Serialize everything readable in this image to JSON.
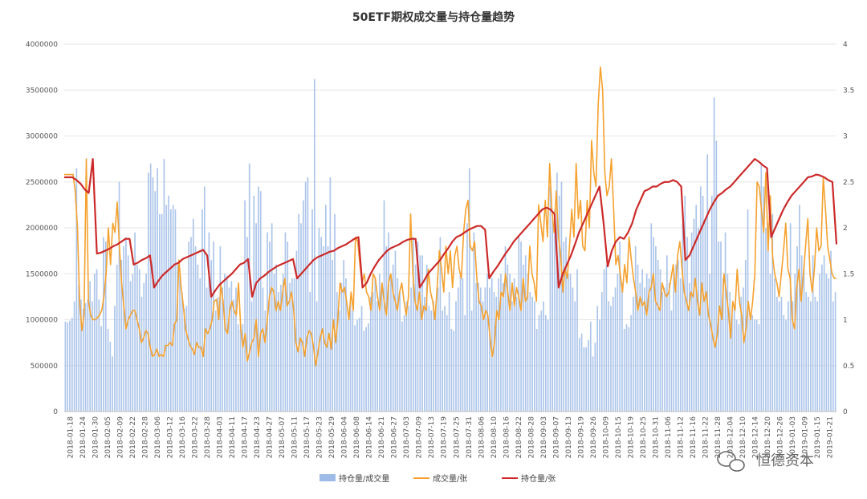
{
  "chart_data": {
    "type": "bar+line",
    "title": "50ETF期权成交量与持仓量趋势",
    "left_axis": {
      "min": 0,
      "max": 4000000,
      "step": 500000,
      "ticks": [
        "0",
        "500000",
        "1000000",
        "1500000",
        "2000000",
        "2500000",
        "3000000",
        "3500000",
        "4000000"
      ]
    },
    "right_axis": {
      "min": 0,
      "max": 4,
      "step": 0.5,
      "ticks": [
        "0",
        "0.5",
        "1",
        "1.5",
        "2",
        "2.5",
        "3",
        "3.5",
        "4"
      ]
    },
    "x_ticks": [
      "2018-01-18",
      "2018-01-24",
      "2018-01-30",
      "2018-02-05",
      "2018-02-09",
      "2018-02-22",
      "2018-02-28",
      "2018-03-06",
      "2018-03-12",
      "2018-03-16",
      "2018-03-22",
      "2018-03-28",
      "2018-04-03",
      "2018-04-11",
      "2018-04-17",
      "2018-04-23",
      "2018-04-27",
      "2018-05-07",
      "2018-05-11",
      "2018-05-17",
      "2018-05-23",
      "2018-05-29",
      "2018-06-04",
      "2018-06-08",
      "2018-06-14",
      "2018-06-21",
      "2018-06-27",
      "2018-07-03",
      "2018-07-09",
      "2018-07-13",
      "2018-07-19",
      "2018-07-25",
      "2018-07-31",
      "2018-08-06",
      "2018-08-10",
      "2018-08-16",
      "2018-08-22",
      "2018-08-28",
      "2018-09-03",
      "2018-09-07",
      "2018-09-13",
      "2018-09-19",
      "2018-09-26",
      "2018-10-09",
      "2018-10-15",
      "2018-10-19",
      "2018-10-25",
      "2018-10-31",
      "2018-11-06",
      "2018-11-12",
      "2018-11-16",
      "2018-11-22",
      "2018-11-28",
      "2018-12-04",
      "2018-12-10",
      "2018-12-14",
      "2018-12-20",
      "2018-12-26",
      "2019-01-03",
      "2019-01-09",
      "2019-01-15",
      "2019-01-21"
    ],
    "series": [
      {
        "name": "持仓量/成交量",
        "type": "bar",
        "axis": "left",
        "color": "#9dbbe6",
        "values": [
          980000,
          970000,
          990000,
          1020000,
          1200000,
          2650000,
          1380000,
          1220000,
          1120000,
          1180000,
          1220000,
          1420000,
          1200000,
          1500000,
          1550000,
          1220000,
          930000,
          1900000,
          1850000,
          900000,
          760000,
          600000,
          1150000,
          1600000,
          2500000,
          1650000,
          1800000,
          1900000,
          1700000,
          1420000,
          1500000,
          1950000,
          1600000,
          1550000,
          1250000,
          1400000,
          1500000,
          2600000,
          2700000,
          2550000,
          2400000,
          2650000,
          2150000,
          2150000,
          2750000,
          2250000,
          2350000,
          2200000,
          2250000,
          2200000,
          1600000,
          1500000,
          1300000,
          1120000,
          1150000,
          1850000,
          1900000,
          2100000,
          1800000,
          1600000,
          1450000,
          2200000,
          2450000,
          1350000,
          1950000,
          1650000,
          1850000,
          1100000,
          1250000,
          1800000,
          1350000,
          1500000,
          1480000,
          1350000,
          1420000,
          1220000,
          1350000,
          950000,
          900000,
          950000,
          2300000,
          1900000,
          2700000,
          1200000,
          2350000,
          2050000,
          2450000,
          2400000,
          1350000,
          1100000,
          1950000,
          1850000,
          2050000,
          1500000,
          1600000,
          1300000,
          1380000,
          1500000,
          1950000,
          1850000,
          1400000,
          1450000,
          1450000,
          1750000,
          2150000,
          2050000,
          2300000,
          2500000,
          2550000,
          1300000,
          2200000,
          3620000,
          1200000,
          2000000,
          1900000,
          1800000,
          2250000,
          1800000,
          2550000,
          1650000,
          2150000,
          1300000,
          1100000,
          1400000,
          1650000,
          1450000,
          1000000,
          1200000,
          1100000,
          940000,
          1000000,
          1020000,
          1150000,
          880000,
          920000,
          960000,
          1250000,
          1300000,
          1450000,
          1200000,
          1500000,
          1350000,
          2300000,
          1800000,
          1950000,
          1500000,
          1600000,
          1750000,
          1450000,
          1300000,
          980000,
          1050000,
          1200000,
          1150000,
          1350000,
          1900000,
          1600000,
          1850000,
          1700000,
          1700000,
          1250000,
          1600000,
          1150000,
          1100000,
          1200000,
          1150000,
          1350000,
          1900000,
          1100000,
          1150000,
          1050000,
          1300000,
          900000,
          880000,
          1200000,
          1350000,
          1500000,
          1450000,
          1050000,
          2050000,
          2650000,
          1100000,
          1950000,
          1400000,
          1400000,
          1350000,
          1200000,
          1350000,
          1500000,
          1350000,
          1450000,
          1300000,
          1250000,
          1450000,
          1500000,
          1400000,
          1800000,
          1600000,
          1500000,
          1200000,
          1450000,
          1250000,
          1900000,
          1850000,
          1600000,
          1700000,
          1500000,
          1300000,
          1250000,
          1200000,
          900000,
          1050000,
          1100000,
          1200000,
          1050000,
          1000000,
          2450000,
          2100000,
          2200000,
          2600000,
          2350000,
          2500000,
          1850000,
          1900000,
          1500000,
          1500000,
          1350000,
          1200000,
          1550000,
          800000,
          850000,
          700000,
          700000,
          780000,
          980000,
          600000,
          750000,
          1150000,
          1000000,
          1300000,
          1550000,
          1600000,
          1200000,
          1150000,
          1250000,
          1350000,
          1500000,
          1850000,
          1400000,
          900000,
          950000,
          920000,
          1050000,
          1250000,
          1800000,
          1600000,
          1400000,
          1550000,
          1350000,
          1500000,
          1450000,
          2050000,
          1900000,
          1800000,
          1650000,
          1550000,
          1300000,
          1350000,
          1700000,
          1400000,
          1100000,
          1500000,
          1600000,
          1650000,
          1450000,
          2050000,
          2350000,
          1900000,
          1400000,
          1950000,
          2100000,
          2250000,
          2000000,
          2450000,
          2350000,
          2100000,
          2800000,
          1500000,
          2350000,
          3420000,
          2950000,
          1850000,
          1850000,
          1450000,
          1950000,
          1500000,
          1300000,
          1050000,
          1150000,
          1000000,
          950000,
          1250000,
          1350000,
          1650000,
          2200000,
          1000000,
          1050000,
          1000000,
          1000000,
          950000,
          2700000,
          2450000,
          2000000,
          2050000,
          1500000,
          2150000,
          1450000,
          1250000,
          1200000,
          1250000,
          1050000,
          1000000,
          1200000,
          2050000,
          1200000,
          1500000,
          1800000,
          2250000,
          1700000,
          1600000,
          1300000,
          1250000,
          1200000,
          1700000,
          1250000,
          1200000,
          1500000,
          1600000,
          1700000,
          1500000,
          1450000,
          1750000,
          1200000,
          1300000
        ]
      },
      {
        "name": "成交量/张",
        "type": "line",
        "axis": "right",
        "color": "#f5a12e",
        "values": [
          2.58,
          2.58,
          2.58,
          2.58,
          2.58,
          2.4,
          2.0,
          1.2,
          0.88,
          1.05,
          2.75,
          1.2,
          1.05,
          1.0,
          1.0,
          1.02,
          1.05,
          1.1,
          1.25,
          1.5,
          2.0,
          1.6,
          2.05,
          1.95,
          2.28,
          1.8,
          1.4,
          1.15,
          0.9,
          1.0,
          1.05,
          1.1,
          1.1,
          1.0,
          0.9,
          0.75,
          0.8,
          0.88,
          0.85,
          0.7,
          0.6,
          0.62,
          0.68,
          0.6,
          0.62,
          0.6,
          0.72,
          0.72,
          0.75,
          0.72,
          0.95,
          1.0,
          1.65,
          1.35,
          1.15,
          0.9,
          0.8,
          0.72,
          0.68,
          0.62,
          0.75,
          0.7,
          0.7,
          0.6,
          0.9,
          0.85,
          0.9,
          1.0,
          1.2,
          1.22,
          1.0,
          1.38,
          1.2,
          0.9,
          0.85,
          1.1,
          1.2,
          1.1,
          1.05,
          1.4,
          0.9,
          0.7,
          0.85,
          0.55,
          0.65,
          0.75,
          0.8,
          1.0,
          0.6,
          0.85,
          0.9,
          0.75,
          1.0,
          1.25,
          1.35,
          1.3,
          1.1,
          1.2,
          1.1,
          1.3,
          1.45,
          1.15,
          1.2,
          1.3,
          1.1,
          0.75,
          0.65,
          0.8,
          0.75,
          0.6,
          0.8,
          0.88,
          0.85,
          0.7,
          0.5,
          0.65,
          0.8,
          0.9,
          0.75,
          0.7,
          0.85,
          0.68,
          1.0,
          0.75,
          1.0,
          1.4,
          1.3,
          1.35,
          1.2,
          1.0,
          1.3,
          1.1,
          1.9,
          1.85,
          1.6,
          1.4,
          1.5,
          1.3,
          1.25,
          1.1,
          1.5,
          1.45,
          1.25,
          1.1,
          1.4,
          1.2,
          1.05,
          1.4,
          1.5,
          1.3,
          1.2,
          1.1,
          1.3,
          1.4,
          1.2,
          1.05,
          1.25,
          2.15,
          1.5,
          1.2,
          1.1,
          1.3,
          1.0,
          1.15,
          1.1,
          1.55,
          1.3,
          1.2,
          1.0,
          1.35,
          1.75,
          1.55,
          1.3,
          1.8,
          1.5,
          1.75,
          1.35,
          1.7,
          1.8,
          1.55,
          1.45,
          1.95,
          2.2,
          2.3,
          1.8,
          1.75,
          1.85,
          1.45,
          1.2,
          1.15,
          1.0,
          1.1,
          1.05,
          0.8,
          0.6,
          0.75,
          1.1,
          1.0,
          1.3,
          1.25,
          1.5,
          1.3,
          1.1,
          1.4,
          1.15,
          1.35,
          1.25,
          1.1,
          1.45,
          1.2,
          1.25,
          1.8,
          1.5,
          1.4,
          1.2,
          2.25,
          2.05,
          1.85,
          2.3,
          1.9,
          2.7,
          2.2,
          1.95,
          2.4,
          1.9,
          1.7,
          1.3,
          1.55,
          1.45,
          1.8,
          2.2,
          1.9,
          2.7,
          2.1,
          2.3,
          1.8,
          1.75,
          2.3,
          2.0,
          2.95,
          2.6,
          2.45,
          3.35,
          3.75,
          3.5,
          2.6,
          2.35,
          2.45,
          2.75,
          2.2,
          1.6,
          1.7,
          1.5,
          1.3,
          1.6,
          1.4,
          1.9,
          1.65,
          1.45,
          1.3,
          1.1,
          1.25,
          1.15,
          1.2,
          1.05,
          1.3,
          1.35,
          1.5,
          1.2,
          1.15,
          1.1,
          1.4,
          1.3,
          1.25,
          1.3,
          1.45,
          1.6,
          1.3,
          1.7,
          1.85,
          1.55,
          1.3,
          1.2,
          1.1,
          1.3,
          1.25,
          1.45,
          1.2,
          1.05,
          1.4,
          1.2,
          1.3,
          1.05,
          0.95,
          0.8,
          0.7,
          0.85,
          1.15,
          1.0,
          1.5,
          1.3,
          1.1,
          0.8,
          1.2,
          1.1,
          1.55,
          1.2,
          1.05,
          0.75,
          0.9,
          1.2,
          1.0,
          1.2,
          1.5,
          2.5,
          2.45,
          2.2,
          1.95,
          2.6,
          1.75,
          2.35,
          1.7,
          1.5,
          1.4,
          1.25,
          1.5,
          1.75,
          2.05,
          1.55,
          1.45,
          1.0,
          0.9,
          1.35,
          1.55,
          1.2,
          1.5,
          1.8,
          2.1,
          1.5,
          1.3,
          1.55,
          2.0,
          1.75,
          1.8,
          2.55,
          2.2,
          1.8,
          1.65,
          1.5,
          1.45,
          1.45
        ]
      },
      {
        "name": "持仓量/张",
        "type": "line",
        "axis": "right",
        "color": "#cc2a2a",
        "values": [
          2.55,
          2.55,
          2.55,
          2.52,
          2.48,
          2.42,
          2.38,
          2.75,
          1.72,
          1.73,
          1.75,
          1.77,
          1.8,
          1.82,
          1.85,
          1.88,
          1.88,
          1.6,
          1.62,
          1.65,
          1.67,
          1.7,
          1.35,
          1.42,
          1.48,
          1.52,
          1.56,
          1.6,
          1.62,
          1.66,
          1.68,
          1.7,
          1.72,
          1.74,
          1.76,
          1.7,
          1.25,
          1.32,
          1.38,
          1.42,
          1.46,
          1.5,
          1.55,
          1.6,
          1.62,
          1.66,
          1.25,
          1.4,
          1.45,
          1.48,
          1.52,
          1.55,
          1.58,
          1.6,
          1.62,
          1.64,
          1.66,
          1.45,
          1.5,
          1.55,
          1.6,
          1.65,
          1.68,
          1.7,
          1.72,
          1.74,
          1.75,
          1.78,
          1.8,
          1.82,
          1.85,
          1.88,
          1.9,
          1.35,
          1.4,
          1.5,
          1.58,
          1.65,
          1.7,
          1.75,
          1.78,
          1.8,
          1.82,
          1.85,
          1.87,
          1.88,
          1.88,
          1.35,
          1.42,
          1.5,
          1.55,
          1.6,
          1.65,
          1.72,
          1.78,
          1.85,
          1.9,
          1.92,
          1.95,
          1.98,
          2.0,
          2.02,
          2.02,
          1.98,
          1.45,
          1.52,
          1.58,
          1.65,
          1.72,
          1.78,
          1.85,
          1.9,
          1.95,
          2.0,
          2.05,
          2.1,
          2.15,
          2.2,
          2.22,
          2.2,
          2.15,
          1.35,
          1.5,
          1.6,
          1.7,
          1.82,
          1.95,
          2.05,
          2.15,
          2.25,
          2.35,
          2.45,
          2.05,
          1.58,
          1.75,
          1.85,
          1.9,
          1.88,
          1.95,
          2.05,
          2.2,
          2.3,
          2.4,
          2.42,
          2.45,
          2.45,
          2.48,
          2.5,
          2.5,
          2.52,
          2.5,
          2.45,
          1.65,
          1.7,
          1.8,
          1.9,
          2.0,
          2.1,
          2.2,
          2.28,
          2.35,
          2.38,
          2.42,
          2.45,
          2.5,
          2.55,
          2.6,
          2.65,
          2.7,
          2.75,
          2.72,
          2.68,
          2.65,
          1.9,
          2.0,
          2.1,
          2.2,
          2.28,
          2.35,
          2.4,
          2.45,
          2.5,
          2.55,
          2.56,
          2.58,
          2.57,
          2.55,
          2.52,
          2.5,
          1.82
        ]
      }
    ],
    "legend_position": "bottom",
    "grid": true
  },
  "watermark": {
    "text": "恒德资本",
    "icon": "wechat-icon"
  }
}
